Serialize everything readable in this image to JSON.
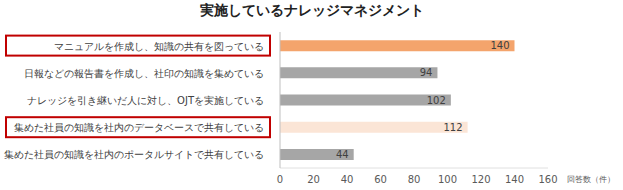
{
  "chart_data": {
    "type": "bar",
    "title": "実施しているナレッジマネジメント",
    "orientation": "horizontal",
    "categories": [
      "マニュアルを作成し、知識の共有を図っている",
      "日報などの報告書を作成し、社印の知識を集めている",
      "ナレッジを引き継いだ人に対し、OJTを実施している",
      "集めた社員の知識を社内のデータベースで共有している",
      "集めた社員の知識を社内のポータルサイトで共有している"
    ],
    "values": [
      140,
      94,
      102,
      112,
      44
    ],
    "colors": [
      "#f4a46c",
      "#a6a6a6",
      "#a6a6a6",
      "#fbe5d6",
      "#a6a6a6"
    ],
    "x_label": "回答数（件）",
    "xlim": [
      0,
      160
    ],
    "xticks": [
      0,
      20,
      40,
      60,
      80,
      100,
      120,
      140,
      160
    ],
    "grid": false,
    "data_labels": true
  }
}
